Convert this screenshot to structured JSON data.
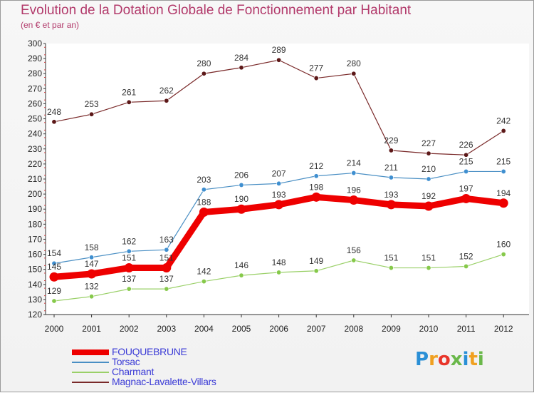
{
  "header": {
    "title": "Evolution de la Dotation Globale de Fonctionnement par Habitant",
    "subtitle": "(en € et par an)"
  },
  "logo": {
    "text": "Proxiti",
    "letters": [
      "P",
      "r",
      "o",
      "x",
      "i",
      "t",
      "i"
    ],
    "colors": [
      "#2a8fd6",
      "#f0a020",
      "#e8352a",
      "#6ab84a",
      "#2a8fd6",
      "#f0a020",
      "#6ab84a"
    ]
  },
  "chart_data": {
    "type": "line",
    "title": "Evolution de la Dotation Globale de Fonctionnement par Habitant",
    "subtitle": "(en € et par an)",
    "x": [
      "2000",
      "2001",
      "2002",
      "2003",
      "2004",
      "2005",
      "2006",
      "2007",
      "2008",
      "2009",
      "2010",
      "2011",
      "2012"
    ],
    "ylim": [
      120,
      300
    ],
    "yticks": [
      120,
      130,
      140,
      150,
      160,
      170,
      180,
      190,
      200,
      210,
      220,
      230,
      240,
      250,
      260,
      270,
      280,
      290,
      300
    ],
    "grid": false,
    "legend_position": "bottom-left",
    "series": [
      {
        "name": "FOUQUEBRUNE",
        "values": [
          145,
          147,
          151,
          151,
          188,
          190,
          193,
          198,
          196,
          193,
          192,
          197,
          194
        ],
        "labels": [
          "145",
          "147",
          "151",
          "151",
          "188",
          "190",
          "193",
          "198",
          "196",
          "193",
          "192",
          "197",
          "194"
        ],
        "color": "#ee0000",
        "emphasis": true
      },
      {
        "name": "Torsac",
        "values": [
          154,
          158,
          162,
          163,
          203,
          206,
          207,
          212,
          214,
          211,
          210,
          215,
          215
        ],
        "labels": [
          "154",
          "158",
          "162",
          "163",
          "203",
          "206",
          "207",
          "212",
          "214",
          "211",
          "210",
          "215",
          "215"
        ],
        "color": "#4a8fc4",
        "marker": "#3f8fd0"
      },
      {
        "name": "Charmant",
        "values": [
          129,
          132,
          137,
          137,
          142,
          146,
          148,
          149,
          156,
          151,
          151,
          152,
          160
        ],
        "labels": [
          "129",
          "132",
          "137",
          "137",
          "142",
          "146",
          "148",
          "149",
          "156",
          "151",
          "151",
          "152",
          "160"
        ],
        "color": "#9ad068",
        "marker": "#86c94a"
      },
      {
        "name": "Magnac-Lavalette-Villars",
        "values": [
          248,
          253,
          261,
          262,
          280,
          284,
          289,
          277,
          280,
          229,
          227,
          226,
          242
        ],
        "labels": [
          "248",
          "253",
          "261",
          "262",
          "280",
          "284",
          "289",
          "277",
          "280",
          "229",
          "227",
          "226",
          "242"
        ],
        "color": "#7a2a2a",
        "marker": "#5c1818"
      }
    ]
  }
}
